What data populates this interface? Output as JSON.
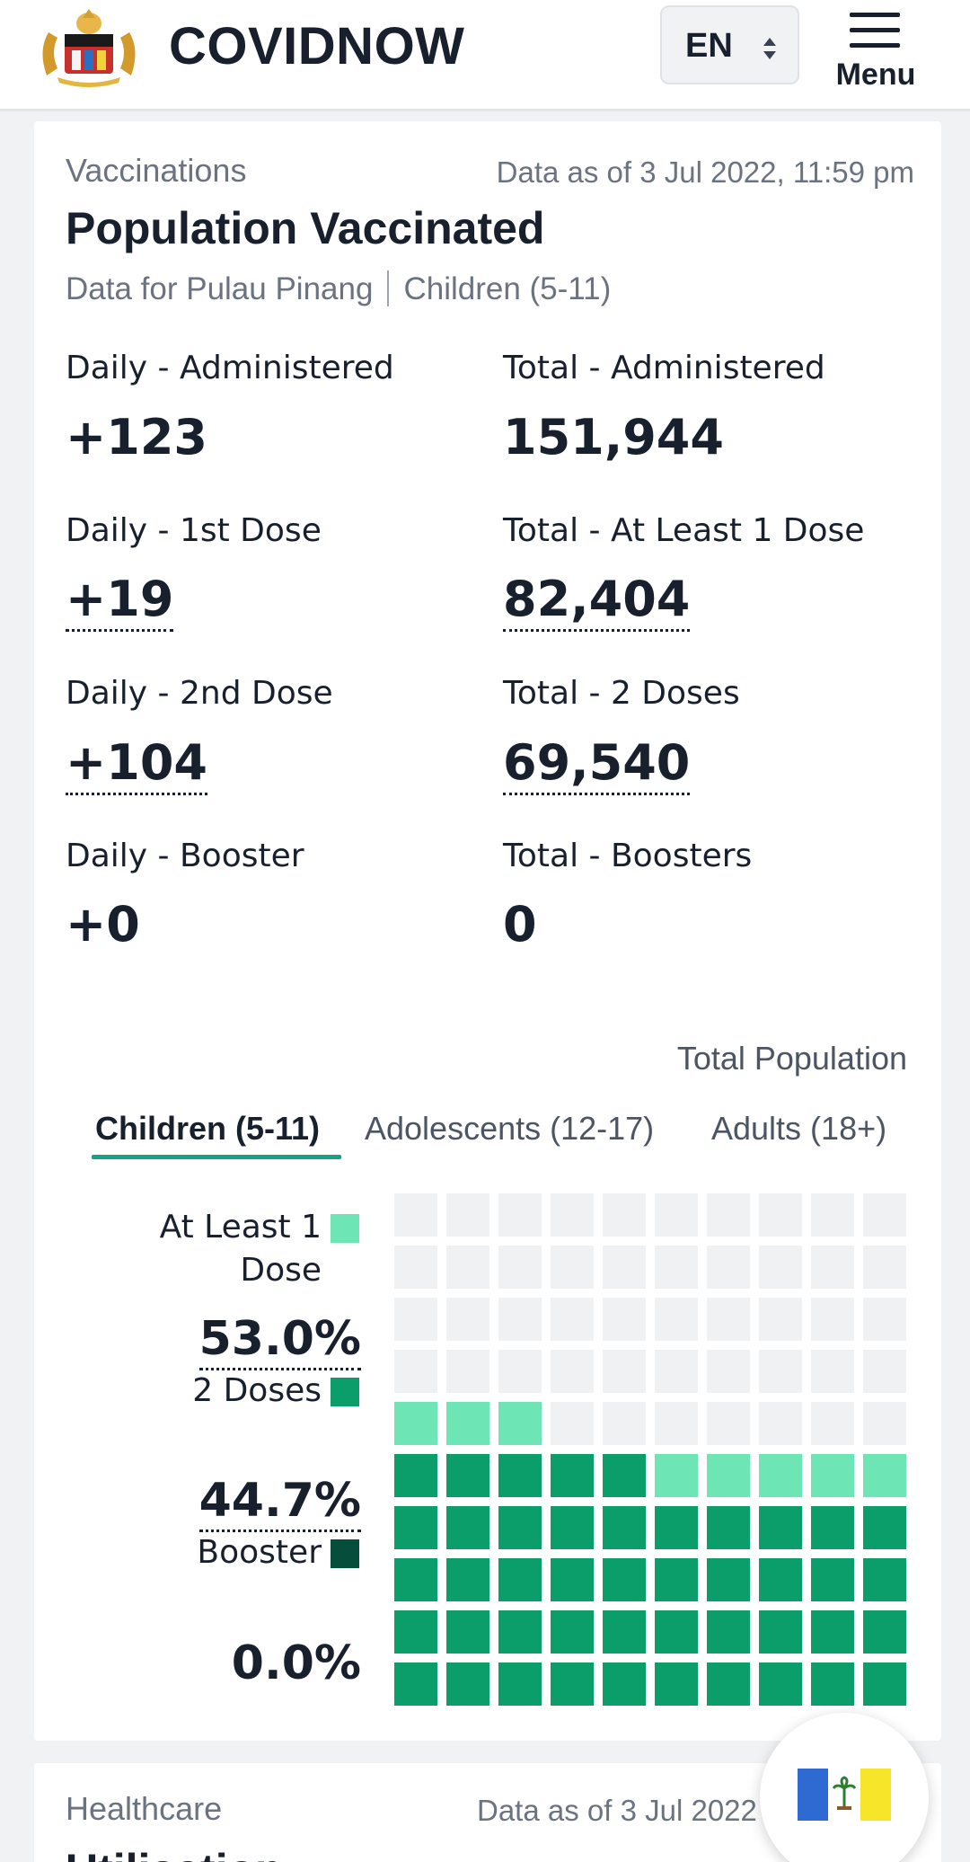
{
  "header": {
    "brand": "COVIDNOW",
    "language": "EN",
    "menu_label": "Menu"
  },
  "vaccination_card": {
    "section": "Vaccinations",
    "as_of": "Data as of 3 Jul 2022, 11:59 pm",
    "title": "Population Vaccinated",
    "subtitle_state": "Data for Pulau Pinang",
    "subtitle_group": "Children (5-11)",
    "stats": {
      "daily_administered": {
        "label": "Daily - Administered",
        "value": "+123"
      },
      "total_administered": {
        "label": "Total - Administered",
        "value": "151,944"
      },
      "daily_first": {
        "label": "Daily - 1st Dose",
        "value": "+19"
      },
      "total_first": {
        "label": "Total - At Least 1 Dose",
        "value": "82,404"
      },
      "daily_second": {
        "label": "Daily - 2nd Dose",
        "value": "+104"
      },
      "total_second": {
        "label": "Total - 2 Doses",
        "value": "69,540"
      },
      "daily_booster": {
        "label": "Daily - Booster",
        "value": "+0"
      },
      "total_booster": {
        "label": "Total - Boosters",
        "value": "0"
      }
    },
    "population_label": "Total Population",
    "tabs": [
      "Children (5-11)",
      "Adolescents (12-17)",
      "Adults (18+)"
    ],
    "active_tab": 0,
    "legend": {
      "at_least_one_line1": "At Least 1",
      "at_least_one_line2": "Dose",
      "at_least_one_pct": "53.0%",
      "two_doses": "2 Doses",
      "two_doses_pct": "44.7%",
      "booster": "Booster",
      "booster_pct": "0.0%"
    },
    "waffle": {
      "at_least_one_fraction": 0.53,
      "two_doses_fraction": 0.447,
      "booster_fraction": 0.0
    },
    "colors": {
      "first_dose": "#6ee5b5",
      "second_dose": "#0c9e6a",
      "booster": "#064e3b",
      "empty": "#f0f1f3",
      "accent": "#16a085"
    }
  },
  "healthcare_card": {
    "section": "Healthcare",
    "as_of": "Data as of 3 Jul 2022",
    "title": "Utilisation"
  },
  "floating_button": {
    "icon": "pulau-pinang-flag-icon"
  }
}
